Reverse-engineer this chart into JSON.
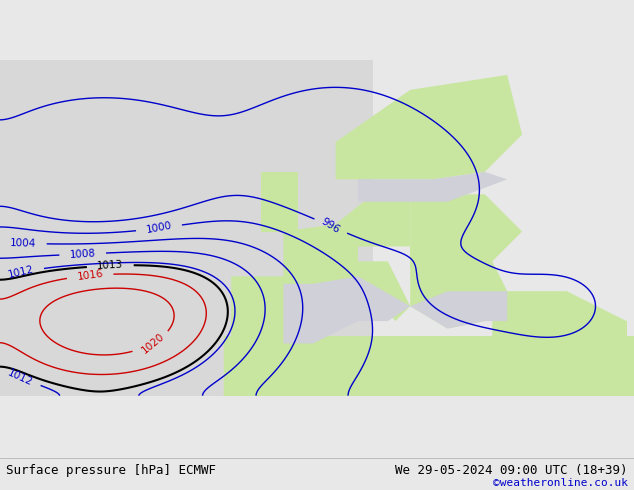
{
  "title_left": "Surface pressure [hPa] ECMWF",
  "title_right": "We 29-05-2024 09:00 UTC (18+39)",
  "copyright": "©weatheronline.co.uk",
  "bg_color": "#e8e8e8",
  "land_color_green": "#c8e6a0",
  "land_color_gray": "#b0b0b0",
  "sea_color": "#ddeeff",
  "contour_blue": "#0000cc",
  "contour_red": "#cc0000",
  "contour_black": "#000000",
  "label_fontsize": 7.5,
  "footer_fontsize": 9,
  "copyright_fontsize": 8,
  "footer_color": "#000000",
  "copyright_color": "#0000cc",
  "fig_width": 6.34,
  "fig_height": 4.9,
  "dpi": 100
}
